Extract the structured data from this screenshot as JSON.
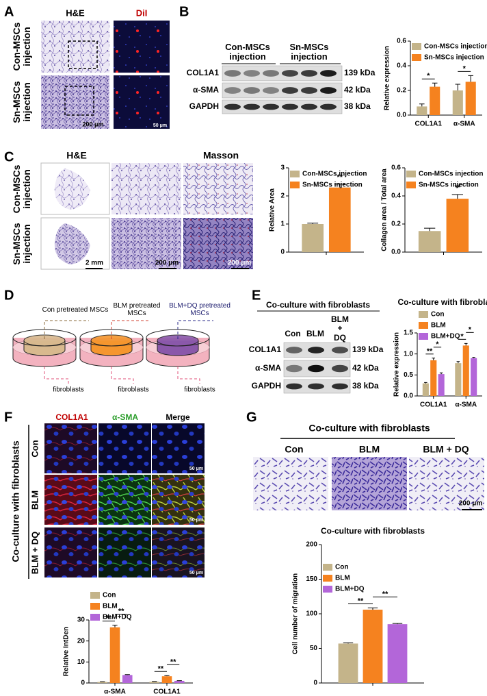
{
  "panels": {
    "A": {
      "label": "A",
      "columns": [
        "H&E",
        "DiI"
      ],
      "rows": [
        "Con-MSCs injection",
        "Sn-MSCs injection"
      ],
      "scale_bars": [
        "200 μm",
        "50 μm"
      ]
    },
    "B": {
      "label": "B",
      "groups": [
        "Con-MSCs injection",
        "Sn-MSCs injection"
      ],
      "bands": [
        {
          "name": "COL1A1",
          "size": "139 kDa"
        },
        {
          "name": "α-SMA",
          "size": "42 kDa"
        },
        {
          "name": "GAPDH",
          "size": "38 kDa"
        }
      ]
    },
    "C": {
      "label": "C",
      "columns": [
        "H&E",
        "Masson"
      ],
      "rows": [
        "Con-MSCs injection",
        "Sn-MSCs injection"
      ],
      "scale_bars": [
        "2 mm",
        "200 μm",
        "200 μm"
      ]
    },
    "D": {
      "label": "D",
      "wells": [
        "Con pretreated MSCs",
        "BLM pretreated MSCs",
        "BLM+DQ pretreated MSCs"
      ],
      "cells": [
        "fibroblasts",
        "fibroblasts",
        "fibroblasts"
      ]
    },
    "E": {
      "label": "E",
      "title": "Co-culture with fibroblasts",
      "lanes": [
        "Con",
        "BLM",
        "BLM + DQ"
      ],
      "bands": [
        {
          "name": "COL1A1",
          "size": "139 kDa"
        },
        {
          "name": "α-SMA",
          "size": "42 kDa"
        },
        {
          "name": "GAPDH",
          "size": "38 kDa"
        }
      ]
    },
    "F": {
      "label": "F",
      "columns": [
        "COL1A1",
        "α-SMA",
        "Merge"
      ],
      "rows": [
        "Con",
        "BLM",
        "BLM + DQ"
      ],
      "side": "Co-culture with fibroblasts",
      "scale_bars": [
        "50 μm",
        "50 μm",
        "50 μm"
      ]
    },
    "G": {
      "label": "G",
      "title": "Co-culture with fibroblasts",
      "columns": [
        "Con",
        "BLM",
        "BLM + DQ"
      ],
      "scale_bar": "200 μm"
    }
  },
  "chart_data": [
    {
      "type": "bar",
      "y_label": "Relative expression",
      "categories": [
        "COL1A1",
        "α-SMA"
      ],
      "series": [
        {
          "name": "Con-MSCs injection",
          "color": "#c4b48a",
          "values": [
            0.07,
            0.2
          ],
          "errors": [
            0.02,
            0.05
          ]
        },
        {
          "name": "Sn-MSCs injection",
          "color": "#f5821f",
          "values": [
            0.23,
            0.27
          ],
          "errors": [
            0.03,
            0.05
          ]
        }
      ],
      "ylim": [
        0,
        0.6
      ],
      "yticks": [
        {
          "value": 0,
          "label": "0.0"
        },
        0.2,
        0.4,
        0.6
      ],
      "annotations": [
        {
          "text": "*",
          "category": 0,
          "series": [
            0,
            1
          ]
        },
        {
          "text": "*",
          "category": 1,
          "series": [
            0,
            1
          ]
        }
      ]
    },
    {
      "type": "bar",
      "y_label": "Relative Area",
      "categories": [
        null
      ],
      "series": [
        {
          "name": "Con-MSCs injection",
          "color": "#c4b48a",
          "values": [
            1.0
          ],
          "errors": [
            0.03
          ]
        },
        {
          "name": "Sn-MSCs injection",
          "color": "#f5821f",
          "values": [
            2.3
          ],
          "errors": [
            0.12
          ]
        }
      ],
      "ylim": [
        0,
        3
      ],
      "yticks": [
        0,
        1,
        2,
        3
      ],
      "annotations": [
        {
          "text": "**",
          "category": 0,
          "series": [
            1
          ]
        }
      ]
    },
    {
      "type": "bar",
      "y_label": "Collagen area / Total area",
      "categories": [
        null
      ],
      "series": [
        {
          "name": "Con-MSCs injection",
          "color": "#c4b48a",
          "values": [
            0.15
          ],
          "errors": [
            0.02
          ]
        },
        {
          "name": "Sn-MSCs injection",
          "color": "#f5821f",
          "values": [
            0.38
          ],
          "errors": [
            0.03
          ]
        }
      ],
      "ylim": [
        0,
        0.6
      ],
      "yticks": [
        {
          "value": 0,
          "label": "0.0"
        },
        0.2,
        0.4,
        0.6
      ],
      "annotations": [
        {
          "text": "**",
          "category": 0,
          "series": [
            1
          ]
        }
      ]
    },
    {
      "type": "bar",
      "title": "Co-culture with fibroblasts",
      "y_label": "Relative expression",
      "categories": [
        "COL1A1",
        "α-SMA"
      ],
      "series": [
        {
          "name": "Con",
          "color": "#c4b48a",
          "values": [
            0.3,
            0.78
          ],
          "errors": [
            0.02,
            0.04
          ]
        },
        {
          "name": "BLM",
          "color": "#f5821f",
          "values": [
            0.85,
            1.2
          ],
          "errors": [
            0.05,
            0.05
          ]
        },
        {
          "name": "BLM+DQ",
          "color": "#b366d9",
          "values": [
            0.52,
            0.9
          ],
          "errors": [
            0.03,
            0.02
          ]
        }
      ],
      "ylim": [
        0,
        1.5
      ],
      "yticks": [
        {
          "value": 0,
          "label": "0.0"
        },
        0.5,
        {
          "value": 1,
          "label": "1.0"
        },
        1.5
      ],
      "annotations": [
        {
          "text": "**",
          "category": 0,
          "series": [
            0,
            1
          ]
        },
        {
          "text": "*",
          "category": 0,
          "series": [
            1,
            2
          ]
        },
        {
          "text": "*",
          "category": 1,
          "series": [
            0,
            1
          ]
        },
        {
          "text": "*",
          "category": 1,
          "series": [
            1,
            2
          ]
        }
      ]
    },
    {
      "type": "bar",
      "y_label": "Relative IntDen",
      "categories": [
        "α-SMA",
        "COL1A1"
      ],
      "series": [
        {
          "name": "Con",
          "color": "#c4b48a",
          "values": [
            0.5,
            0.6
          ],
          "errors": [
            0.1,
            0.1
          ]
        },
        {
          "name": "BLM",
          "color": "#f5821f",
          "values": [
            26.5,
            3.2
          ],
          "errors": [
            1.0,
            0.3
          ]
        },
        {
          "name": "BLM+DQ",
          "color": "#b366d9",
          "values": [
            3.8,
            1.0
          ],
          "errors": [
            0.2,
            0.1
          ]
        }
      ],
      "ylim": [
        0,
        30
      ],
      "yticks": [
        0,
        10,
        20,
        30
      ],
      "annotations": [
        {
          "text": "**",
          "category": 0,
          "series": [
            0,
            1
          ]
        },
        {
          "text": "**",
          "category": 0,
          "series": [
            1,
            2
          ]
        },
        {
          "text": "**",
          "category": 1,
          "series": [
            0,
            1
          ]
        },
        {
          "text": "**",
          "category": 1,
          "series": [
            1,
            2
          ]
        }
      ]
    },
    {
      "type": "bar",
      "title": "Co-culture with fibroblasts",
      "y_label": "Cell number of migration",
      "categories": [
        null
      ],
      "series": [
        {
          "name": "Con",
          "color": "#c4b48a",
          "values": [
            57
          ],
          "errors": [
            1
          ]
        },
        {
          "name": "BLM",
          "color": "#f5821f",
          "values": [
            106
          ],
          "errors": [
            2.5
          ]
        },
        {
          "name": "BLM+DQ",
          "color": "#b366d9",
          "values": [
            85
          ],
          "errors": [
            1
          ]
        }
      ],
      "ylim": [
        0,
        200
      ],
      "yticks": [
        0,
        50,
        100,
        150,
        200
      ],
      "annotations": [
        {
          "text": "**",
          "category": 0,
          "series": [
            0,
            1
          ]
        },
        {
          "text": "**",
          "category": 0,
          "series": [
            1,
            2
          ]
        }
      ]
    }
  ]
}
